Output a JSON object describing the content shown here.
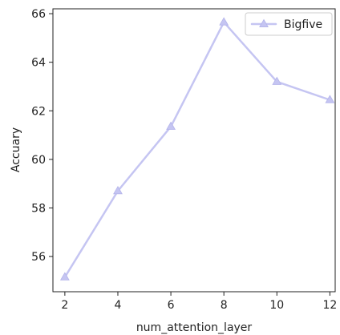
{
  "chart_data": {
    "type": "line",
    "x": [
      2,
      4,
      6,
      8,
      10,
      12
    ],
    "series": [
      {
        "name": "Bigfive",
        "values": [
          55.15,
          58.7,
          61.35,
          65.65,
          63.2,
          62.45
        ],
        "color": "#c5c5f2",
        "marker": "triangle-up"
      }
    ],
    "xlabel": "num_attention_layer",
    "ylabel": "Accuary",
    "xlim": [
      1.55,
      12.2
    ],
    "ylim": [
      54.55,
      66.2
    ],
    "xticks": [
      2,
      4,
      6,
      8,
      10,
      12
    ],
    "yticks": [
      56,
      58,
      60,
      62,
      64,
      66
    ],
    "legend_position": "top-right",
    "grid": false
  }
}
